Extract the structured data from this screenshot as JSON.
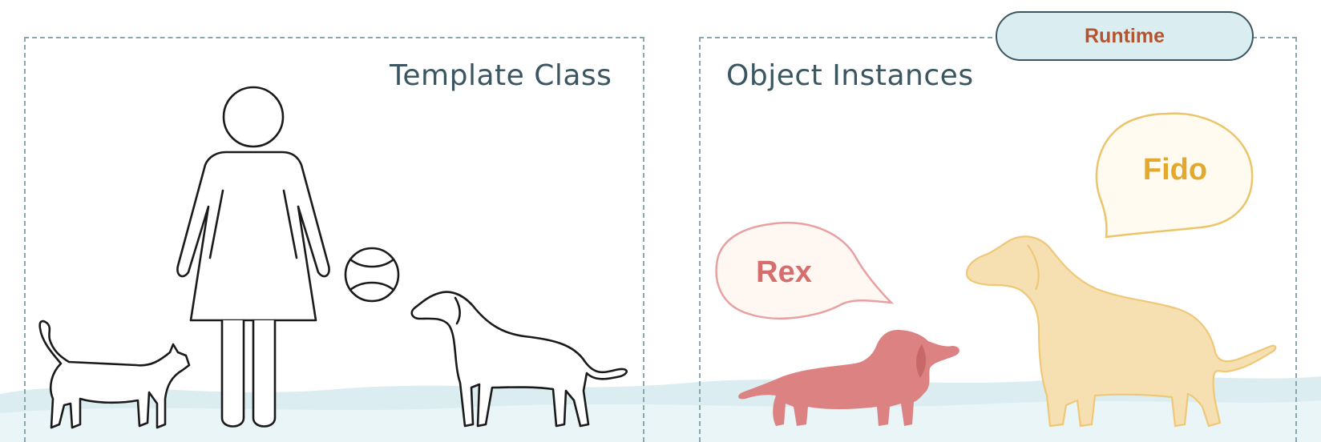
{
  "left_panel": {
    "title": "Template Class"
  },
  "right_panel": {
    "title": "Object Instances",
    "badge": "Runtime",
    "instances": [
      {
        "name": "Rex",
        "color": "#dc8282"
      },
      {
        "name": "Fido",
        "color": "#f3d9a2"
      }
    ]
  },
  "colors": {
    "border": "#8aa7ad",
    "title_text": "#3b5660",
    "badge_fill": "#daeef1",
    "badge_text": "#b5532f",
    "rex_text": "#d66e6e",
    "fido_text": "#e4a82c",
    "ground": "#dcedf1"
  }
}
